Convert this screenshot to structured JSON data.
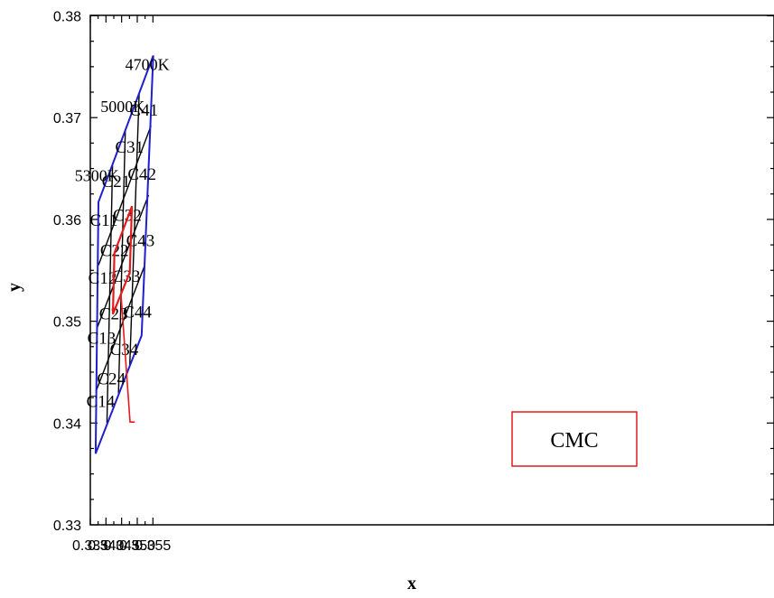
{
  "chart_data": {
    "type": "scatter",
    "title": "",
    "xlabel": "x",
    "ylabel": "y",
    "xlim": [
      0.335,
      0.357
    ],
    "ylim": [
      0.33,
      0.38
    ],
    "x_ticks": [
      0.335,
      0.34,
      0.345,
      0.35,
      0.355
    ],
    "x_tick_labels": [
      "0.335",
      "0.340",
      "0.345",
      "0.350",
      "0.355"
    ],
    "y_ticks": [
      0.33,
      0.34,
      0.35,
      0.36,
      0.37,
      0.38
    ],
    "y_tick_labels": [
      "0.33",
      "0.34",
      "0.35",
      "0.36",
      "0.37",
      "0.38"
    ],
    "grid": false,
    "colors": {
      "boundary": "#1f1fcc",
      "grid_lines": "#000000",
      "cmc": "#e41a1c"
    },
    "boundary": [
      {
        "x": 0.3376,
        "y": 0.3617
      },
      {
        "x": 0.3551,
        "y": 0.3761
      },
      {
        "x": 0.3514,
        "y": 0.3486
      },
      {
        "x": 0.3367,
        "y": 0.337
      }
    ],
    "row_lines": [
      [
        {
          "x": 0.3376,
          "y": 0.3555
        },
        {
          "x": 0.3544,
          "y": 0.3692
        }
      ],
      [
        {
          "x": 0.3371,
          "y": 0.3493
        },
        {
          "x": 0.3536,
          "y": 0.3624
        }
      ],
      [
        {
          "x": 0.3368,
          "y": 0.3431
        },
        {
          "x": 0.3524,
          "y": 0.3555
        }
      ]
    ],
    "col_lines": [
      [
        {
          "x": 0.3421,
          "y": 0.3653
        },
        {
          "x": 0.3403,
          "y": 0.34
        }
      ],
      [
        {
          "x": 0.3462,
          "y": 0.3689
        },
        {
          "x": 0.344,
          "y": 0.3429
        }
      ],
      [
        {
          "x": 0.3506,
          "y": 0.3724
        },
        {
          "x": 0.3476,
          "y": 0.3457
        }
      ]
    ],
    "cell_labels": [
      {
        "text": "C11",
        "x": 0.3393,
        "y": 0.36
      },
      {
        "text": "C12",
        "x": 0.3389,
        "y": 0.3543
      },
      {
        "text": "C13",
        "x": 0.3386,
        "y": 0.3484
      },
      {
        "text": "C14",
        "x": 0.3383,
        "y": 0.3422
      },
      {
        "text": "C21",
        "x": 0.3432,
        "y": 0.3638
      },
      {
        "text": "C22",
        "x": 0.3427,
        "y": 0.357
      },
      {
        "text": "C23",
        "x": 0.3424,
        "y": 0.3508
      },
      {
        "text": "C24",
        "x": 0.3417,
        "y": 0.3444
      },
      {
        "text": "C31",
        "x": 0.3475,
        "y": 0.3672
      },
      {
        "text": "C32",
        "x": 0.3468,
        "y": 0.3605
      },
      {
        "text": "C33",
        "x": 0.3464,
        "y": 0.3545
      },
      {
        "text": "C34",
        "x": 0.3458,
        "y": 0.3473
      },
      {
        "text": "C41",
        "x": 0.3521,
        "y": 0.3708
      },
      {
        "text": "C42",
        "x": 0.3515,
        "y": 0.3645
      },
      {
        "text": "C43",
        "x": 0.351,
        "y": 0.358
      },
      {
        "text": "C44",
        "x": 0.35,
        "y": 0.351
      }
    ],
    "temperature_labels": [
      {
        "text": "5300K",
        "x": 0.3371,
        "y": 0.3643
      },
      {
        "text": "5000K",
        "x": 0.3453,
        "y": 0.3711
      },
      {
        "text": "4700K",
        "x": 0.3532,
        "y": 0.3752
      }
    ],
    "cmc_polygon": [
      {
        "x": 0.3427,
        "y": 0.3567
      },
      {
        "x": 0.3483,
        "y": 0.3613
      },
      {
        "x": 0.3476,
        "y": 0.3548
      },
      {
        "x": 0.3422,
        "y": 0.3507
      }
    ],
    "cmc_leader": [
      {
        "x": 0.3448,
        "y": 0.3526
      },
      {
        "x": 0.3477,
        "y": 0.3401
      },
      {
        "x": 0.3492,
        "y": 0.3401
      }
    ],
    "cmc_label": "CMC"
  }
}
